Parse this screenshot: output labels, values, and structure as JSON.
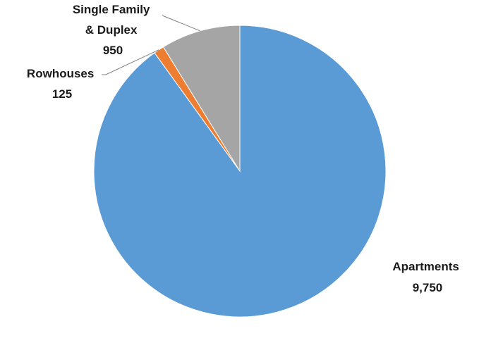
{
  "chart_data": {
    "type": "pie",
    "start_angle_deg": 0,
    "direction": "clockwise",
    "slices": [
      {
        "name": "Apartments",
        "value": 9750,
        "value_label": "9,750",
        "color": "#5B9BD5",
        "label_lines": [
          "Apartments"
        ]
      },
      {
        "name": "Rowhouses",
        "value": 125,
        "value_label": "125",
        "color": "#ED7D31",
        "label_lines": [
          "Rowhouses"
        ]
      },
      {
        "name": "Single Family & Duplex",
        "value": 950,
        "value_label": "950",
        "color": "#A5A5A5",
        "label_lines": [
          "Single Family",
          "& Duplex"
        ]
      }
    ]
  }
}
